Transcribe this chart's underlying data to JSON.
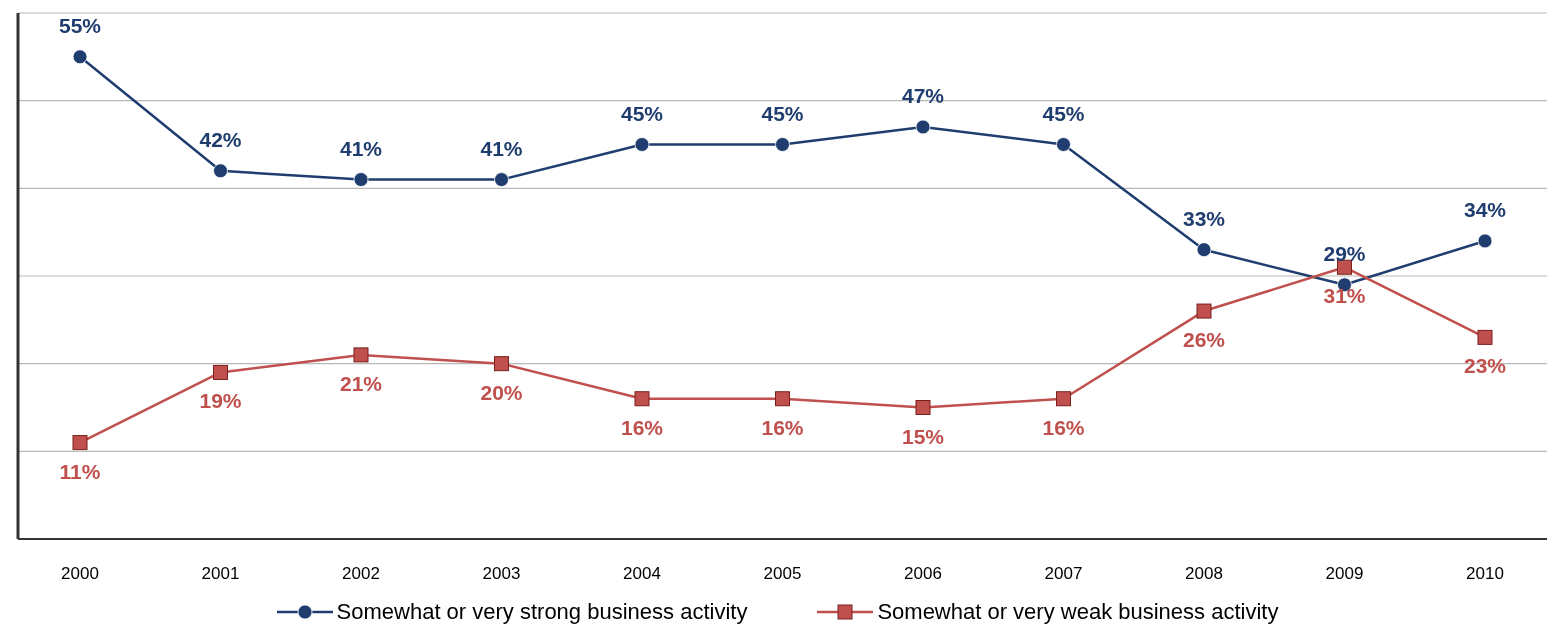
{
  "chart_data": {
    "type": "line",
    "categories": [
      "2000",
      "2001",
      "2002",
      "2003",
      "2004",
      "2005",
      "2006",
      "2007",
      "2008",
      "2009",
      "2010"
    ],
    "series": [
      {
        "name": "Somewhat or very strong business activity",
        "color": "#1f3d6e",
        "marker": "circle",
        "values": [
          55,
          42,
          41,
          41,
          45,
          45,
          47,
          45,
          33,
          29,
          34
        ],
        "value_labels": [
          "55%",
          "42%",
          "41%",
          "41%",
          "45%",
          "45%",
          "47%",
          "45%",
          "33%",
          "29%",
          "34%"
        ]
      },
      {
        "name": "Somewhat or very weak business activity",
        "color": "#c0504d",
        "marker": "square",
        "values": [
          11,
          19,
          21,
          20,
          16,
          16,
          15,
          16,
          26,
          31,
          23
        ],
        "value_labels": [
          "11%",
          "19%",
          "21%",
          "20%",
          "16%",
          "16%",
          "15%",
          "16%",
          "26%",
          "31%",
          "23%"
        ]
      }
    ],
    "ylim": [
      0,
      60
    ],
    "tick_labels": "x",
    "grid": "y",
    "legend": "bottom",
    "line_style": "solid"
  }
}
